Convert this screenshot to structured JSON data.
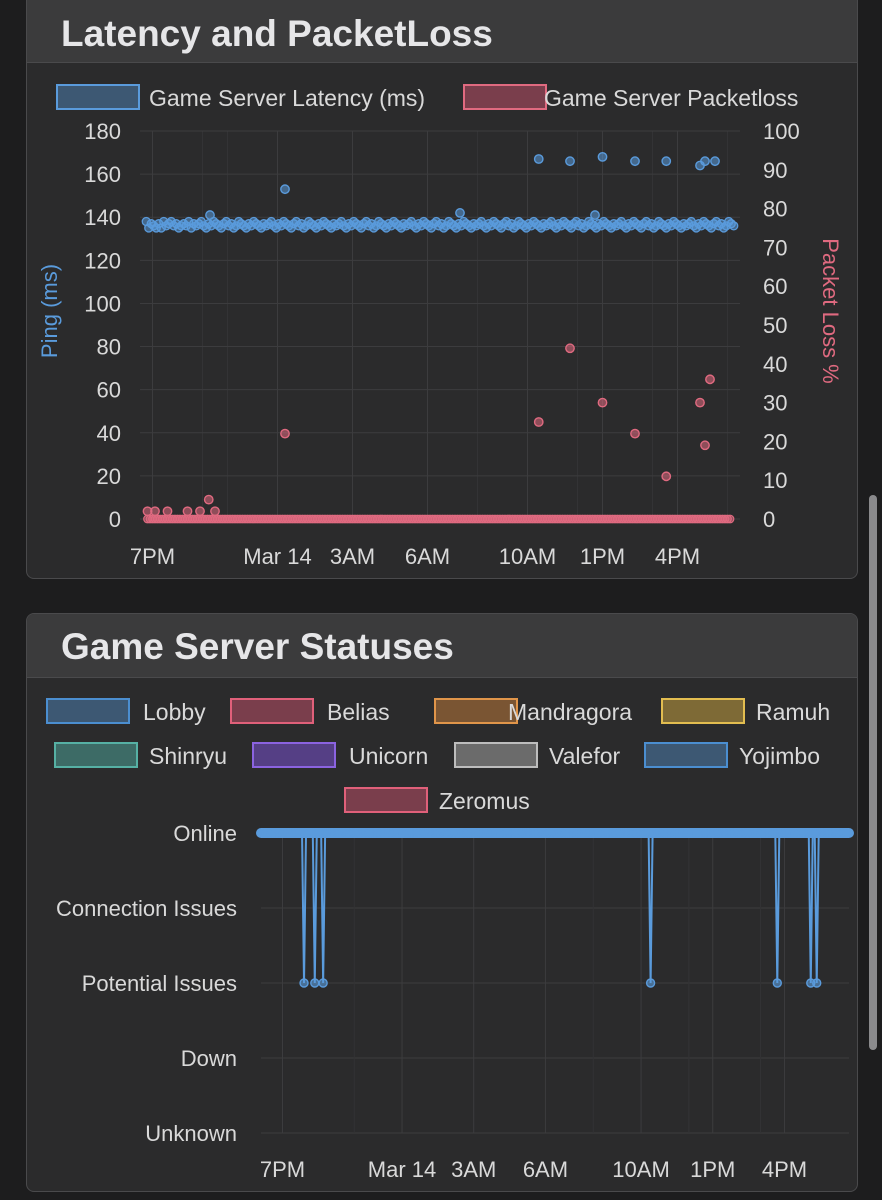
{
  "cards": {
    "latency": {
      "title": "Latency and PacketLoss"
    },
    "statuses": {
      "title": "Game Server Statuses"
    }
  },
  "chart_data": [
    {
      "type": "scatter",
      "title": "Latency and PacketLoss",
      "x_tick_labels": [
        "7PM",
        "Mar 14",
        "3AM",
        "6AM",
        "10AM",
        "1PM",
        "4PM"
      ],
      "x_tick_hours": [
        19,
        24,
        27,
        30,
        34,
        37,
        40
      ],
      "x_range_hours": [
        18.5,
        42.5
      ],
      "y_left": {
        "label": "Ping (ms)",
        "range": [
          0,
          180
        ],
        "ticks": [
          0,
          20,
          40,
          60,
          80,
          100,
          120,
          140,
          160,
          180
        ],
        "color": "#5a9bdc"
      },
      "y_right": {
        "label": "Packet Loss %",
        "range": [
          0,
          100
        ],
        "ticks": [
          0,
          10,
          20,
          30,
          40,
          50,
          60,
          70,
          80,
          90,
          100
        ],
        "color": "#e06a80"
      },
      "grid": true,
      "legend_position": "top",
      "series": [
        {
          "name": "Game Server Latency (ms)",
          "axis": "left",
          "color": "#5a9bdc",
          "sample_interval_hours": 0.1,
          "baseline": [
            138,
            135,
            137,
            136,
            135,
            137,
            135,
            138,
            136,
            137,
            138,
            136,
            137,
            135,
            136,
            137,
            136,
            138,
            135,
            137,
            136,
            137,
            138,
            136,
            135,
            137,
            136,
            138,
            137,
            136,
            135,
            137,
            138,
            136,
            137,
            135,
            136,
            138,
            137,
            136,
            135,
            137,
            136,
            138,
            137,
            136,
            135,
            137,
            136,
            137,
            138,
            136,
            135,
            137,
            136,
            138,
            137,
            136,
            135,
            137,
            138,
            136,
            137,
            135,
            136,
            138,
            137,
            136,
            135,
            137,
            136,
            138,
            137,
            136,
            135,
            137,
            136,
            137,
            138,
            136,
            135,
            137,
            136,
            138,
            137,
            136,
            135,
            137,
            138,
            136,
            137,
            135,
            136,
            138,
            137,
            136,
            135,
            137,
            136,
            138,
            137,
            136,
            135,
            137,
            136,
            137,
            138,
            136,
            135,
            137,
            136,
            138,
            137,
            136,
            135,
            137,
            138,
            136,
            137,
            135,
            136,
            138,
            137,
            136,
            135,
            137,
            136,
            138,
            137,
            136,
            135,
            137,
            136,
            137,
            138,
            136,
            135,
            137,
            136,
            138,
            137,
            136,
            135,
            137,
            138,
            136,
            137,
            135,
            136,
            138,
            137,
            136,
            135,
            137,
            136,
            138,
            137,
            136,
            135,
            137,
            136,
            137,
            138,
            136,
            135,
            137,
            136,
            138,
            137,
            136,
            135,
            137,
            138,
            136,
            137,
            135,
            136,
            138,
            137,
            136,
            135,
            137,
            136,
            138,
            137,
            136,
            135,
            137,
            136,
            137,
            138,
            136,
            135,
            137,
            136,
            138,
            137,
            136,
            135,
            137,
            138,
            136,
            137,
            135,
            136,
            138,
            137,
            136,
            135,
            137,
            136,
            138,
            137,
            136,
            135,
            137,
            136,
            137,
            138,
            136,
            135,
            137,
            136,
            138,
            137,
            136,
            135,
            137,
            138,
            136,
            137,
            135,
            136,
            138,
            137,
            136,
            135,
            137,
            136,
            138,
            137,
            136,
            135,
            137
          ],
          "outliers": [
            {
              "x": 21.3,
              "y": 141
            },
            {
              "x": 24.3,
              "y": 153
            },
            {
              "x": 31.3,
              "y": 142
            },
            {
              "x": 34.45,
              "y": 167
            },
            {
              "x": 35.7,
              "y": 166
            },
            {
              "x": 37.0,
              "y": 168
            },
            {
              "x": 38.3,
              "y": 166
            },
            {
              "x": 39.55,
              "y": 166
            },
            {
              "x": 36.7,
              "y": 141
            },
            {
              "x": 40.9,
              "y": 164
            },
            {
              "x": 41.1,
              "y": 166
            },
            {
              "x": 41.5,
              "y": 166
            }
          ]
        },
        {
          "name": "Game Server Packetloss",
          "axis": "right",
          "color": "#e06a80",
          "baseline_value": 0,
          "points": [
            {
              "x": 18.8,
              "y": 2
            },
            {
              "x": 19.1,
              "y": 2
            },
            {
              "x": 19.6,
              "y": 2
            },
            {
              "x": 20.4,
              "y": 2
            },
            {
              "x": 20.9,
              "y": 2
            },
            {
              "x": 21.25,
              "y": 5
            },
            {
              "x": 21.5,
              "y": 2
            },
            {
              "x": 24.3,
              "y": 22
            },
            {
              "x": 34.45,
              "y": 25
            },
            {
              "x": 35.7,
              "y": 44
            },
            {
              "x": 37.0,
              "y": 30
            },
            {
              "x": 38.3,
              "y": 22
            },
            {
              "x": 39.55,
              "y": 11
            },
            {
              "x": 40.9,
              "y": 30
            },
            {
              "x": 41.1,
              "y": 19
            },
            {
              "x": 41.3,
              "y": 36
            }
          ]
        }
      ]
    },
    {
      "type": "line",
      "title": "Game Server Statuses",
      "x_tick_labels": [
        "7PM",
        "Mar 14",
        "3AM",
        "6AM",
        "10AM",
        "1PM",
        "4PM"
      ],
      "x_tick_hours": [
        19,
        24,
        27,
        30,
        34,
        37,
        40
      ],
      "x_range_hours": [
        18.1,
        42.7
      ],
      "y_categories": [
        "Online",
        "Connection Issues",
        "Potential Issues",
        "Down",
        "Unknown"
      ],
      "grid": true,
      "legend_position": "top",
      "series": [
        {
          "name": "Lobby",
          "color": "#4b8ed0",
          "fill": "#3d5873"
        },
        {
          "name": "Belias",
          "color": "#e0607a",
          "fill": "#7a3e4c"
        },
        {
          "name": "Mandragora",
          "color": "#e0954a",
          "fill": "#7a5533"
        },
        {
          "name": "Ramuh",
          "color": "#e2bd50",
          "fill": "#7e6a36"
        },
        {
          "name": "Shinryu",
          "color": "#56b0a4",
          "fill": "#3d6b66"
        },
        {
          "name": "Unicorn",
          "color": "#8b63e0",
          "fill": "#553f85"
        },
        {
          "name": "Valefor",
          "color": "#bdbdbd",
          "fill": "#6b6b6b"
        },
        {
          "name": "Yojimbo",
          "color": "#4b8ed0",
          "fill": "#3d5873"
        },
        {
          "name": "Zeromus",
          "color": "#e0607a",
          "fill": "#7a3e4c"
        }
      ],
      "status_line": {
        "color": "#5a9bdc",
        "default_status": "Online",
        "dips": [
          {
            "x": 19.9,
            "status": "Potential Issues"
          },
          {
            "x": 20.35,
            "status": "Potential Issues"
          },
          {
            "x": 20.7,
            "status": "Potential Issues"
          },
          {
            "x": 34.4,
            "status": "Potential Issues"
          },
          {
            "x": 39.7,
            "status": "Potential Issues"
          },
          {
            "x": 41.1,
            "status": "Potential Issues"
          },
          {
            "x": 41.35,
            "status": "Potential Issues"
          }
        ]
      }
    }
  ]
}
